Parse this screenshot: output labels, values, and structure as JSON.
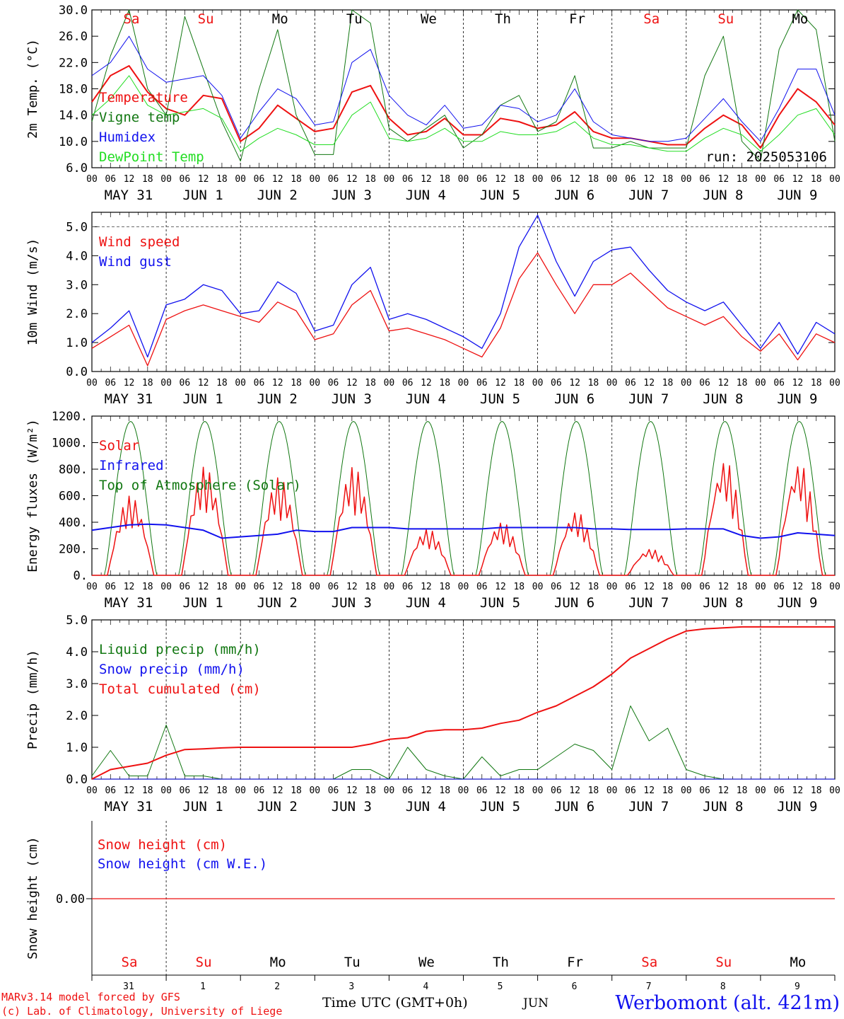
{
  "run_label": "run: 2025053106",
  "footer": {
    "model": "MARv3.14 model forced by GFS",
    "copyright": "(c) Lab. of Climatology, University of Liege",
    "time_axis": "Time UTC (GMT+0h)",
    "month": "JUN",
    "station": "Werbomont (alt. 421m)"
  },
  "days": [
    {
      "dow": "Sa",
      "date": "MAY 31",
      "num": "31",
      "weekend": true
    },
    {
      "dow": "Su",
      "date": "JUN  1",
      "num": "1",
      "weekend": true
    },
    {
      "dow": "Mo",
      "date": "JUN  2",
      "num": "2",
      "weekend": false
    },
    {
      "dow": "Tu",
      "date": "JUN  3",
      "num": "3",
      "weekend": false
    },
    {
      "dow": "We",
      "date": "JUN  4",
      "num": "4",
      "weekend": false
    },
    {
      "dow": "Th",
      "date": "JUN  5",
      "num": "5",
      "weekend": false
    },
    {
      "dow": "Fr",
      "date": "JUN  6",
      "num": "6",
      "weekend": false
    },
    {
      "dow": "Sa",
      "date": "JUN  7",
      "num": "7",
      "weekend": true
    },
    {
      "dow": "Su",
      "date": "JUN  8",
      "num": "8",
      "weekend": true
    },
    {
      "dow": "Mo",
      "date": "JUN  9",
      "num": "9",
      "weekend": false
    }
  ],
  "hour_labels": [
    "00",
    "06",
    "12",
    "18"
  ],
  "colors": {
    "red": "#ee1111",
    "blue": "#1111ee",
    "green": "#117711",
    "light_green": "#22dd22",
    "weekend": "#ee1111",
    "axis": "#000000"
  },
  "chart_data": [
    {
      "type": "line",
      "ylabel": "2m Temp. (°C)",
      "ylim": [
        6,
        30
      ],
      "yticks": [
        "6.0",
        "10.0",
        "14.0",
        "18.0",
        "22.0",
        "26.0",
        "30.0"
      ],
      "x_hours": [
        0,
        6,
        12,
        18,
        24,
        30,
        36,
        42,
        48,
        54,
        60,
        66,
        72,
        78,
        84,
        90,
        96,
        102,
        108,
        114,
        120,
        126,
        132,
        138,
        144,
        150,
        156,
        162,
        168,
        174,
        180,
        186,
        192,
        198,
        204,
        210,
        216,
        222,
        228,
        234,
        240
      ],
      "series": [
        {
          "name": "Temperature",
          "color": "red",
          "values": [
            16.0,
            20.0,
            21.5,
            17.5,
            15.0,
            14.0,
            17.0,
            16.5,
            10.0,
            12.0,
            15.5,
            13.5,
            11.5,
            12.0,
            17.5,
            18.5,
            13.5,
            11.0,
            11.5,
            13.5,
            11.0,
            11.0,
            13.5,
            13.0,
            12.0,
            12.5,
            14.5,
            11.5,
            10.5,
            10.5,
            10.0,
            9.5,
            9.5,
            12.0,
            14.0,
            12.5,
            9.0,
            14.0,
            18.0,
            16.0,
            12.5
          ]
        },
        {
          "name": "Vigne temp",
          "color": "green",
          "values": [
            13.0,
            23.0,
            30.0,
            18.0,
            14.0,
            29.0,
            21.0,
            13.0,
            7.0,
            18.0,
            27.0,
            14.0,
            8.0,
            8.0,
            30.0,
            28.0,
            12.0,
            10.0,
            12.0,
            14.0,
            9.0,
            11.0,
            15.5,
            17.0,
            11.5,
            13.0,
            20.0,
            9.0,
            9.0,
            10.0,
            9.0,
            9.0,
            9.0,
            20.0,
            26.0,
            10.0,
            7.0,
            24.0,
            30.0,
            27.0,
            10.0
          ]
        },
        {
          "name": "Humidex",
          "color": "blue",
          "values": [
            20.0,
            22.0,
            26.0,
            21.0,
            19.0,
            19.5,
            20.0,
            17.0,
            10.5,
            14.5,
            18.0,
            16.5,
            12.5,
            13.0,
            22.0,
            24.0,
            17.0,
            14.0,
            12.5,
            15.5,
            12.0,
            12.5,
            15.5,
            15.0,
            13.0,
            14.0,
            18.0,
            13.0,
            11.0,
            10.5,
            10.0,
            10.0,
            10.5,
            13.5,
            16.5,
            13.0,
            10.0,
            15.0,
            21.0,
            21.0,
            14.0
          ]
        },
        {
          "name": "DewPoint Temp",
          "color": "light_green",
          "values": [
            14.0,
            16.5,
            20.0,
            15.5,
            14.0,
            14.5,
            15.0,
            13.5,
            8.5,
            10.5,
            12.0,
            11.0,
            9.5,
            9.5,
            14.0,
            16.0,
            10.5,
            10.0,
            10.5,
            12.0,
            10.0,
            10.0,
            11.5,
            11.0,
            11.0,
            11.5,
            13.0,
            10.5,
            9.5,
            9.5,
            9.0,
            8.5,
            8.5,
            10.5,
            12.0,
            11.0,
            8.5,
            11.0,
            14.0,
            15.0,
            11.0
          ]
        }
      ],
      "hline": null
    },
    {
      "type": "line",
      "ylabel": "10m Wind (m/s)",
      "ylim": [
        0,
        5.5
      ],
      "yticks": [
        "0.0",
        "1.0",
        "2.0",
        "3.0",
        "4.0",
        "5.0"
      ],
      "x_hours": [
        0,
        6,
        12,
        18,
        24,
        30,
        36,
        42,
        48,
        54,
        60,
        66,
        72,
        78,
        84,
        90,
        96,
        102,
        108,
        114,
        120,
        126,
        132,
        138,
        144,
        150,
        156,
        162,
        168,
        174,
        180,
        186,
        192,
        198,
        204,
        210,
        216,
        222,
        228,
        234,
        240
      ],
      "series": [
        {
          "name": "Wind speed",
          "color": "red",
          "values": [
            0.8,
            1.2,
            1.6,
            0.2,
            1.8,
            2.1,
            2.3,
            2.1,
            1.9,
            1.7,
            2.4,
            2.1,
            1.1,
            1.3,
            2.3,
            2.8,
            1.4,
            1.5,
            1.3,
            1.1,
            0.8,
            0.5,
            1.5,
            3.2,
            4.1,
            3.0,
            2.0,
            3.0,
            3.0,
            3.4,
            2.8,
            2.2,
            1.9,
            1.6,
            1.9,
            1.2,
            0.7,
            1.3,
            0.4,
            1.3,
            1.0
          ]
        },
        {
          "name": "Wind gust",
          "color": "blue",
          "values": [
            1.0,
            1.5,
            2.1,
            0.5,
            2.3,
            2.5,
            3.0,
            2.8,
            2.0,
            2.1,
            3.1,
            2.7,
            1.4,
            1.6,
            3.0,
            3.6,
            1.8,
            2.0,
            1.8,
            1.5,
            1.2,
            0.8,
            2.0,
            4.3,
            5.4,
            3.8,
            2.6,
            3.8,
            4.2,
            4.3,
            3.5,
            2.8,
            2.4,
            2.1,
            2.4,
            1.6,
            0.8,
            1.7,
            0.6,
            1.7,
            1.3
          ]
        }
      ],
      "hline": 5.0
    },
    {
      "type": "line",
      "ylabel": "Energy fluxes (W/m²)",
      "ylim": [
        0,
        1200
      ],
      "yticks": [
        "0.",
        "200.",
        "400.",
        "600.",
        "800.",
        "1000.",
        "1200."
      ],
      "series": [
        {
          "name": "Solar",
          "color": "red",
          "daily_peaks": [
            600,
            820,
            740,
            820,
            350,
            400,
            480,
            200,
            870,
            850
          ]
        },
        {
          "name": "Infrared",
          "color": "blue",
          "values": [
            340,
            360,
            380,
            385,
            380,
            360,
            340,
            280,
            290,
            300,
            310,
            340,
            330,
            330,
            360,
            360,
            360,
            350,
            350,
            350,
            350,
            350,
            360,
            360,
            360,
            360,
            360,
            350,
            350,
            345,
            345,
            345,
            350,
            350,
            350,
            300,
            280,
            290,
            320,
            310,
            300
          ]
        },
        {
          "name": "Top of Atmosphere (Solar)",
          "color": "green",
          "daily_peak": 1160
        }
      ],
      "hline": null
    },
    {
      "type": "line",
      "ylabel": "Precip (mm/h)",
      "ylim": [
        0,
        5
      ],
      "yticks": [
        "0.0",
        "1.0",
        "2.0",
        "3.0",
        "4.0",
        "5.0"
      ],
      "x_hours": [
        0,
        6,
        12,
        18,
        24,
        30,
        36,
        42,
        48,
        54,
        60,
        66,
        72,
        78,
        84,
        90,
        96,
        102,
        108,
        114,
        120,
        126,
        132,
        138,
        144,
        150,
        156,
        162,
        168,
        174,
        180,
        186,
        192,
        198,
        204,
        210,
        216,
        222,
        228,
        234,
        240
      ],
      "series": [
        {
          "name": "Liquid precip (mm/h)",
          "color": "green",
          "values": [
            0.1,
            0.9,
            0.1,
            0.1,
            1.7,
            0.1,
            0.1,
            0.0,
            0.0,
            0.0,
            0.0,
            0.0,
            0.0,
            0.0,
            0.3,
            0.3,
            0.0,
            1.0,
            0.3,
            0.1,
            0.0,
            0.7,
            0.1,
            0.3,
            0.3,
            0.7,
            1.1,
            0.9,
            0.3,
            2.3,
            1.2,
            1.6,
            0.3,
            0.1,
            0.0,
            0.0,
            0.0,
            0.0,
            0.0,
            0.0,
            0.0
          ]
        },
        {
          "name": "Snow precip (mm/h)",
          "color": "blue",
          "values": [
            0,
            0,
            0,
            0,
            0,
            0,
            0,
            0,
            0,
            0,
            0,
            0,
            0,
            0,
            0,
            0,
            0,
            0,
            0,
            0,
            0,
            0,
            0,
            0,
            0,
            0,
            0,
            0,
            0,
            0,
            0,
            0,
            0,
            0,
            0,
            0,
            0,
            0,
            0,
            0,
            0
          ]
        },
        {
          "name": "Total cumulated (cm)",
          "color": "red",
          "values": [
            0.0,
            0.3,
            0.4,
            0.5,
            0.75,
            0.93,
            0.95,
            0.98,
            1.0,
            1.0,
            1.0,
            1.0,
            1.0,
            1.0,
            1.0,
            1.1,
            1.25,
            1.3,
            1.5,
            1.55,
            1.55,
            1.6,
            1.75,
            1.85,
            2.1,
            2.3,
            2.6,
            2.9,
            3.3,
            3.8,
            4.1,
            4.4,
            4.65,
            4.72,
            4.75,
            4.78,
            4.78,
            4.78,
            4.78,
            4.78,
            4.78
          ]
        }
      ],
      "hline": null
    },
    {
      "type": "line",
      "ylabel": "Snow height (cm)",
      "yticks": [
        "0.00"
      ],
      "series": [
        {
          "name": "Snow height (cm)",
          "color": "red",
          "values": [
            0.0,
            0.0
          ]
        },
        {
          "name": "Snow height (cm W.E.)",
          "color": "blue",
          "values": [
            0.0,
            0.0
          ]
        }
      ],
      "hline": null
    }
  ]
}
